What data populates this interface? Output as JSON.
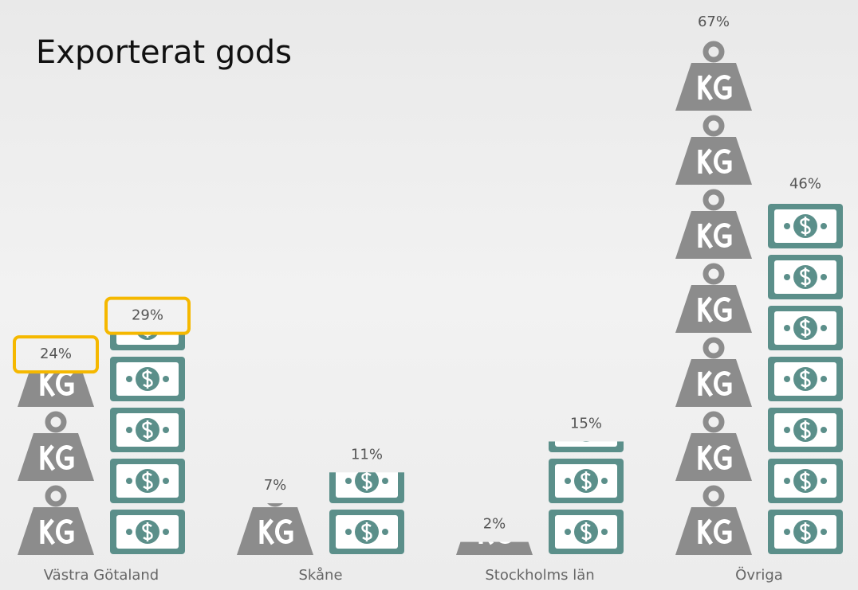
{
  "chart_data": {
    "type": "pictograph",
    "title": "Exporterat gods",
    "categories": [
      "Västra Götaland",
      "Skåne",
      "Stockholms län",
      "Övriga"
    ],
    "series": [
      {
        "icon": "weight",
        "color": "#8c8c8c",
        "values": [
          24,
          7,
          2,
          67
        ],
        "value_labels": [
          "24%",
          "7%",
          "2%",
          "67%"
        ]
      },
      {
        "icon": "money",
        "color": "#5b8f8a",
        "values": [
          29,
          11,
          15,
          46
        ],
        "value_labels": [
          "29%",
          "11%",
          "15%",
          "46%"
        ]
      }
    ],
    "highlight": {
      "category": 0,
      "color": "#f5b800"
    }
  }
}
